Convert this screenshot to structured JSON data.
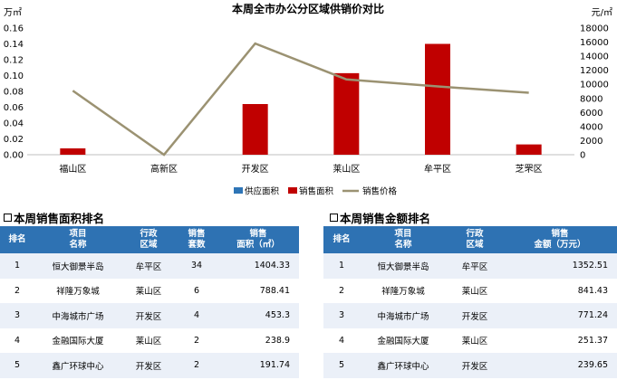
{
  "chart_data": {
    "type": "bar",
    "title": "本周全市办公分区域供销价对比",
    "left_unit": "万㎡",
    "right_unit": "元/㎡",
    "categories": [
      "福山区",
      "高新区",
      "开发区",
      "莱山区",
      "牟平区",
      "芝罘区"
    ],
    "ylim_left": [
      0,
      0.16
    ],
    "left_ticks": [
      "0.00",
      "0.02",
      "0.04",
      "0.06",
      "0.08",
      "0.10",
      "0.12",
      "0.14",
      "0.16"
    ],
    "ylim_right": [
      0,
      18000
    ],
    "right_ticks": [
      "0",
      "2000",
      "4000",
      "6000",
      "8000",
      "10000",
      "12000",
      "14000",
      "16000",
      "18000"
    ],
    "series": [
      {
        "name": "供应面积",
        "type": "bar",
        "axis": "left",
        "color": "#2e75b6",
        "values": [
          0,
          0,
          0,
          0,
          0,
          0
        ]
      },
      {
        "name": "销售面积",
        "type": "bar",
        "axis": "left",
        "color": "#c00000",
        "values": [
          0.008,
          0,
          0.064,
          0.103,
          0.14,
          0.013
        ]
      },
      {
        "name": "销售价格",
        "type": "line",
        "axis": "right",
        "color": "#9b9272",
        "values": [
          9100,
          0,
          15800,
          10700,
          9700,
          8800
        ]
      }
    ],
    "grid": false,
    "legend": "bottom"
  },
  "area_table": {
    "title": "本周销售面积排名",
    "headers": [
      "排名",
      "项目\n名称",
      "行政\n区域",
      "销售\n套数",
      "销售\n面积（㎡）"
    ],
    "rows": [
      [
        "1",
        "恒大御景半岛",
        "牟平区",
        "34",
        "1404.33"
      ],
      [
        "2",
        "祥隆万象城",
        "莱山区",
        "6",
        "788.41"
      ],
      [
        "3",
        "中海城市广场",
        "开发区",
        "4",
        "453.3"
      ],
      [
        "4",
        "金融国际大厦",
        "莱山区",
        "2",
        "238.9"
      ],
      [
        "5",
        "鑫广环球中心",
        "开发区",
        "2",
        "191.74"
      ]
    ]
  },
  "amount_table": {
    "title": "本周销售金额排名",
    "headers": [
      "排名",
      "项目\n名称",
      "行政\n区域",
      "销售\n金额（万元）"
    ],
    "rows": [
      [
        "1",
        "恒大御景半岛",
        "牟平区",
        "1352.51"
      ],
      [
        "2",
        "祥隆万象城",
        "莱山区",
        "841.43"
      ],
      [
        "3",
        "中海城市广场",
        "开发区",
        "771.24"
      ],
      [
        "4",
        "金融国际大厦",
        "莱山区",
        "251.37"
      ],
      [
        "5",
        "鑫广环球中心",
        "开发区",
        "239.65"
      ]
    ]
  }
}
